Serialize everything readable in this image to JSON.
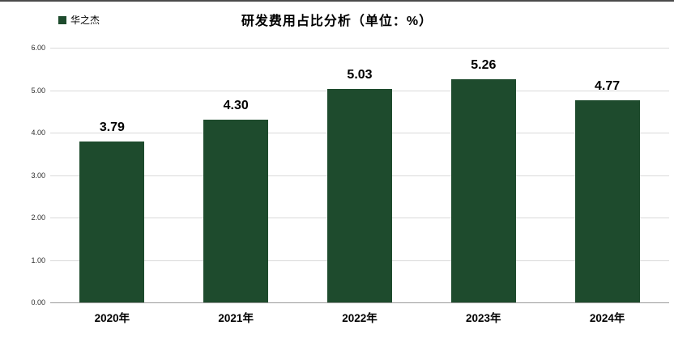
{
  "header": {
    "legend_label": "华之杰",
    "title": "研发费用占比分析",
    "title_suffix": "（单位：%）"
  },
  "colors": {
    "bar": "#1e4b2d",
    "grid": "#d9d9d9",
    "axis": "#9a9a9a"
  },
  "chart_data": {
    "type": "bar",
    "title": "研发费用占比分析（单位：%）",
    "series_name": "华之杰",
    "categories": [
      "2020年",
      "2021年",
      "2022年",
      "2023年",
      "2024年"
    ],
    "values": [
      3.79,
      4.3,
      5.03,
      5.26,
      4.77
    ],
    "data_labels": [
      "3.79",
      "4.30",
      "5.03",
      "5.26",
      "4.77"
    ],
    "xlabel": "",
    "ylabel": "",
    "ylim": [
      0,
      6
    ],
    "ytick_step": 1,
    "ytick_labels": [
      "0.00",
      "1.00",
      "2.00",
      "3.00",
      "4.00",
      "5.00",
      "6.00"
    ],
    "grid": true,
    "legend_position": "top-left"
  }
}
